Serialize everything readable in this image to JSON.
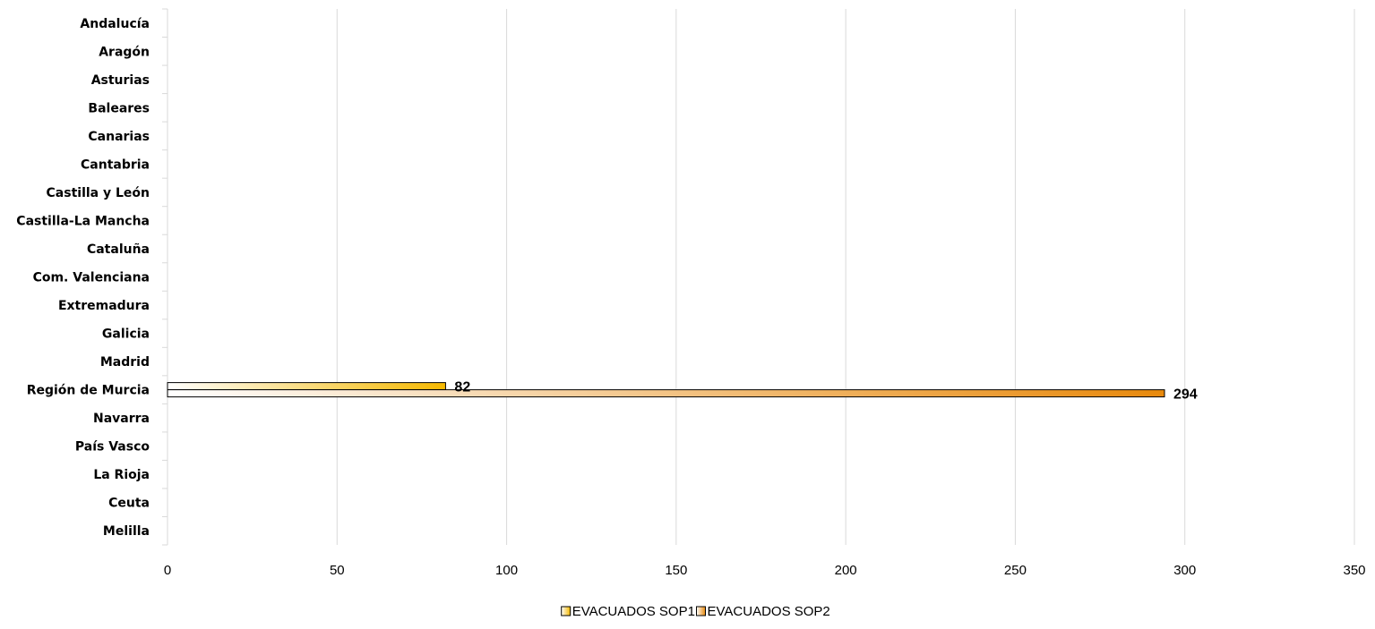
{
  "chart_data": {
    "type": "bar",
    "orientation": "horizontal",
    "categories": [
      "Andalucía",
      "Aragón",
      "Asturias",
      "Baleares",
      "Canarias",
      "Cantabria",
      "Castilla y León",
      "Castilla-La Mancha",
      "Cataluña",
      "Com. Valenciana",
      "Extremadura",
      "Galicia",
      "Madrid",
      "Región de Murcia",
      "Navarra",
      "País Vasco",
      "La Rioja",
      "Ceuta",
      "Melilla"
    ],
    "series": [
      {
        "name": "EVACUADOS SOP1",
        "color": "#F5B800",
        "values": [
          null,
          null,
          null,
          null,
          null,
          null,
          null,
          null,
          null,
          null,
          null,
          null,
          null,
          82,
          null,
          null,
          null,
          null,
          null
        ],
        "labels": [
          "",
          "",
          "",
          "",
          "",
          "",
          "",
          "",
          "",
          "",
          "",
          "",
          "",
          "82",
          "",
          "",
          "",
          "",
          ""
        ]
      },
      {
        "name": "EVACUADOS SOP2",
        "color": "#E8890C",
        "values": [
          null,
          null,
          null,
          null,
          null,
          null,
          null,
          null,
          null,
          null,
          null,
          null,
          null,
          294,
          null,
          null,
          null,
          null,
          null
        ],
        "labels": [
          "",
          "",
          "",
          "",
          "",
          "",
          "",
          "",
          "",
          "",
          "",
          "",
          "",
          "294",
          "",
          "",
          "",
          "",
          ""
        ]
      }
    ],
    "xlim": [
      0,
      350
    ],
    "xticks": [
      0,
      50,
      100,
      150,
      200,
      250,
      300,
      350
    ],
    "xtick_labels": [
      "0",
      "50",
      "100",
      "150",
      "200",
      "250",
      "300",
      "350"
    ],
    "grid": "vertical",
    "legend_position": "bottom"
  }
}
